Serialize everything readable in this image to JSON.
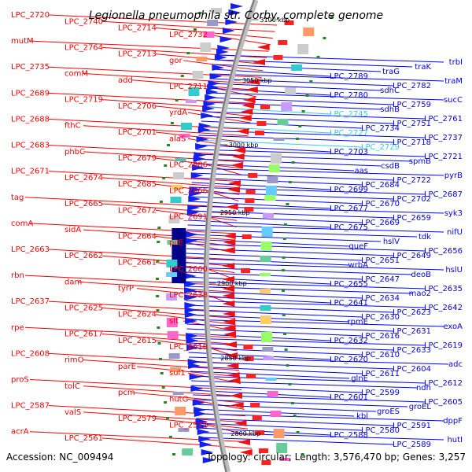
{
  "title": "Legionella pneumophila str. Corby, complete genome",
  "footer": {
    "accession": "Accession: NC_009494",
    "summary": "Topology: circular; Length: 3,576,470 bp; Genes: 3,257"
  },
  "colors": {
    "reverse_strand": "#ff0000",
    "forward_strand": "#0000ff",
    "highlight_label": "#33ccff",
    "backbone": "#999999"
  },
  "scale_labels": [
    "3100 kbp",
    "3050 kbp",
    "3000 kbp",
    "2950 kbp",
    "2900 kbp",
    "2850 kbp",
    "2800 kbp"
  ],
  "left_labels": [
    "LPC_2720",
    "LPC_2740",
    "LPC_2714",
    "LPC_2732",
    "mutM",
    "LPC_2764",
    "LPC_2713",
    "gor",
    "LPC_2735",
    "comM",
    "add",
    "LPC_2711",
    "LPC_2689",
    "LPC_2719",
    "LPC_2706",
    "yrdA",
    "LPC_2688",
    "fthC",
    "LPC_2701",
    "alaS",
    "LPC_2683",
    "phbC",
    "LPC_2679",
    "LPC_2686",
    "LPC_2671",
    "LPC_2674",
    "LPC_2685",
    "LPC_2666",
    "tag",
    "LPC_2665",
    "LPC_2672",
    "LPC_2691",
    "comA",
    "sidA",
    "LPC_2664",
    "pilE",
    "LPC_2663",
    "LPC_2662",
    "LPC_2661",
    "LPC_2660",
    "rbn",
    "dam",
    "tyrP",
    "LPC_2638",
    "LPC_2637",
    "LPC_2625",
    "LPC_2624",
    "slt",
    "rpe",
    "LPC_2617",
    "LPC_2615",
    "LPC_2618",
    "LPC_2608",
    "rimO",
    "parE",
    "sul1",
    "proS",
    "tolC",
    "pcm",
    "hutG",
    "LPC_2587",
    "valS",
    "LPC_2579",
    "LPC_2572",
    "acrA",
    "LPC_2561"
  ],
  "right_labels": [
    "trbI",
    "traK",
    "traG",
    "LPC_2789",
    "traM",
    "LPC_2782",
    "sdhC",
    "LPC_2780",
    "sucC",
    "LPC_2759",
    "sdhB",
    "LPC_2745",
    "LPC_2761",
    "LPC_2751",
    "LPC_2734",
    "LPC_2727",
    "LPC_2737",
    "LPC_2718",
    "LPC_2729",
    "LPC_2703",
    "LPC_2721",
    "spmB",
    "csdB",
    "aas",
    "pyrB",
    "LPC_2722",
    "LPC_2684",
    "LPC_2699",
    "LPC_2687",
    "LPC_2702",
    "LPC_2670",
    "LPC_2677",
    "syk3",
    "LPC_2659",
    "LPC_2669",
    "LPC_2675",
    "nifU",
    "tdk",
    "hslV",
    "queF",
    "LPC_2656",
    "LPC_2649",
    "LPC_2651",
    "wrbA",
    "hslU",
    "deoB",
    "LPC_2647",
    "LPC_2655",
    "LPC_2635",
    "mao2",
    "LPC_2634",
    "LPC_2641",
    "LPC_2642",
    "LPC_2623",
    "LPC_2630",
    "rpmE",
    "exoA",
    "LPC_2631",
    "LPC_2616",
    "LPC_2632",
    "LPC_2619",
    "LPC_2633",
    "LPC_2610",
    "LPC_2620",
    "adc",
    "LPC_2604",
    "LPC_2611",
    "glnE",
    "LPC_2612",
    "ndh",
    "LPC_2599",
    "LPC_2601",
    "LPC_2605",
    "groEL",
    "groES",
    "kbl",
    "dppF",
    "LPC_2591",
    "LPC_2580",
    "LPC_2588",
    "hutI",
    "LPC_2589"
  ]
}
